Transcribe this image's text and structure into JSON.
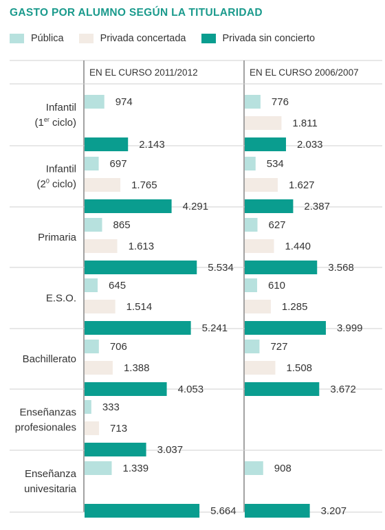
{
  "title": "GASTO POR ALUMNO SEGÚN LA TITULARIDAD",
  "legend": [
    {
      "label": "Pública",
      "color": "#b7e1de"
    },
    {
      "label": "Privada concertada",
      "color": "#f3ebe4"
    },
    {
      "label": "Privada sin concierto",
      "color": "#0a9d8f"
    }
  ],
  "chart_data": {
    "type": "bar",
    "orientation": "horizontal",
    "panels": [
      "EN EL CURSO 2011/2012",
      "EN EL CURSO 2006/2007"
    ],
    "groups": [
      {
        "label_lines": [
          "Infantil",
          "(1er ciclo)"
        ],
        "label_sup": "er",
        "values": [
          [
            974,
            null,
            2143
          ],
          [
            776,
            1811,
            2033
          ]
        ],
        "labels": [
          [
            "974",
            null,
            "2.143"
          ],
          [
            "776",
            "1.811",
            "2.033"
          ]
        ]
      },
      {
        "label_lines": [
          "Infantil",
          "(20 ciclo)"
        ],
        "label_sup": "0",
        "values": [
          [
            697,
            1765,
            4291
          ],
          [
            534,
            1627,
            2387
          ]
        ],
        "labels": [
          [
            "697",
            "1.765",
            "4.291"
          ],
          [
            "534",
            "1.627",
            "2.387"
          ]
        ]
      },
      {
        "label_lines": [
          "Primaria"
        ],
        "values": [
          [
            865,
            1613,
            5534
          ],
          [
            627,
            1440,
            3568
          ]
        ],
        "labels": [
          [
            "865",
            "1.613",
            "5.534"
          ],
          [
            "627",
            "1.440",
            "3.568"
          ]
        ]
      },
      {
        "label_lines": [
          "E.S.O."
        ],
        "values": [
          [
            645,
            1514,
            5241
          ],
          [
            610,
            1285,
            3999
          ]
        ],
        "labels": [
          [
            "645",
            "1.514",
            "5.241"
          ],
          [
            "610",
            "1.285",
            "3.999"
          ]
        ]
      },
      {
        "label_lines": [
          "Bachillerato"
        ],
        "values": [
          [
            706,
            1388,
            4053
          ],
          [
            727,
            1508,
            3672
          ]
        ],
        "labels": [
          [
            "706",
            "1.388",
            "4.053"
          ],
          [
            "727",
            "1.508",
            "3.672"
          ]
        ]
      },
      {
        "label_lines": [
          "Enseñanzas",
          "profesionales"
        ],
        "values": [
          [
            333,
            713,
            3037
          ],
          [
            null,
            null,
            null
          ]
        ],
        "labels": [
          [
            "333",
            "713",
            "3.037"
          ],
          [
            null,
            null,
            null
          ]
        ]
      },
      {
        "label_lines": [
          "Enseñanza",
          "univesitaria"
        ],
        "values": [
          [
            1339,
            null,
            5664
          ],
          [
            908,
            null,
            3207
          ]
        ],
        "labels": [
          [
            "1.339",
            null,
            "5.664"
          ],
          [
            "908",
            null,
            "3.207"
          ]
        ]
      }
    ],
    "series": [
      "Pública",
      "Privada concertada",
      "Privada sin concierto"
    ],
    "xlim": [
      0,
      5664
    ],
    "grid": false
  }
}
